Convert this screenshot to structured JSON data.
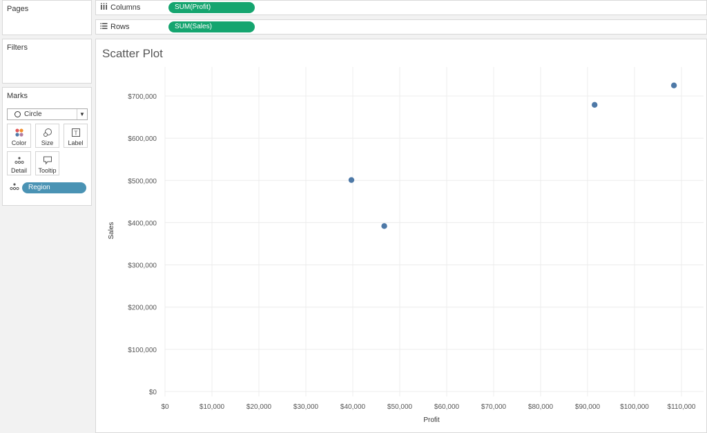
{
  "cards": {
    "pages": {
      "title": "Pages"
    },
    "filters": {
      "title": "Filters"
    },
    "marks": {
      "title": "Marks",
      "mark_type": "Circle",
      "buttons": {
        "color": "Color",
        "size": "Size",
        "label": "Label",
        "detail": "Detail",
        "tooltip": "Tooltip"
      },
      "detail_pill": "Region",
      "pill_color": "#4a93b4"
    }
  },
  "shelves": {
    "columns": {
      "label": "Columns",
      "pill": "SUM(Profit)"
    },
    "rows": {
      "label": "Rows",
      "pill": "SUM(Sales)"
    },
    "pill_color": "#15a56f"
  },
  "worksheet": {
    "title": "Scatter Plot"
  },
  "chart_data": {
    "type": "scatter",
    "xlabel": "Profit",
    "ylabel": "Sales",
    "xlim": [
      0,
      115000
    ],
    "ylim": [
      0,
      750000
    ],
    "x_ticks": [
      0,
      10000,
      20000,
      30000,
      40000,
      50000,
      60000,
      70000,
      80000,
      90000,
      100000,
      110000
    ],
    "y_ticks": [
      0,
      100000,
      200000,
      300000,
      400000,
      500000,
      600000,
      700000
    ],
    "x_tick_labels": [
      "$0",
      "$10,000",
      "$20,000",
      "$30,000",
      "$40,000",
      "$50,000",
      "$60,000",
      "$70,000",
      "$80,000",
      "$90,000",
      "$100,000",
      "$110,000"
    ],
    "y_tick_labels": [
      "$0",
      "$100,000",
      "$200,000",
      "$300,000",
      "$400,000",
      "$500,000",
      "$600,000",
      "$700,000"
    ],
    "grid": true,
    "marker_color": "#4e79a7",
    "points": [
      {
        "x": 39700,
        "y": 501000
      },
      {
        "x": 46700,
        "y": 392000
      },
      {
        "x": 91500,
        "y": 679000
      },
      {
        "x": 108400,
        "y": 725000
      }
    ]
  }
}
